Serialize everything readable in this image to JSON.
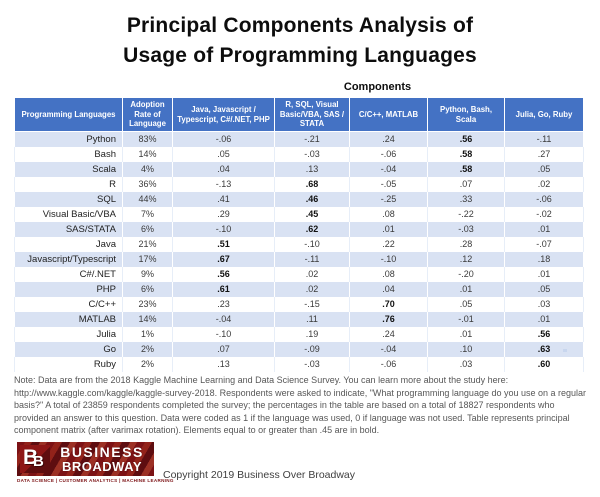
{
  "title": {
    "line1": "Principal Components Analysis of",
    "line2": "Usage of Programming Languages"
  },
  "table": {
    "components_label": "Components",
    "columns": [
      "Programming Languages",
      "Adoption Rate of Language",
      "Java, Javascript / Typescript, C#/.NET, PHP",
      "R, SQL, Visual Basic/VBA, SAS / STATA",
      "C/C++, MATLAB",
      "Python, Bash, Scala",
      "Julia, Go, Ruby"
    ],
    "rows": [
      {
        "language": "Python",
        "adoption": "83%",
        "values": [
          "-.06",
          "-.21",
          ".24",
          ".56",
          "-.11"
        ],
        "bold_index": 3
      },
      {
        "language": "Bash",
        "adoption": "14%",
        "values": [
          ".05",
          "-.03",
          "-.06",
          ".58",
          ".27"
        ],
        "bold_index": 3
      },
      {
        "language": "Scala",
        "adoption": "4%",
        "values": [
          ".04",
          ".13",
          "-.04",
          ".58",
          ".05"
        ],
        "bold_index": 3
      },
      {
        "language": "R",
        "adoption": "36%",
        "values": [
          "-.13",
          ".68",
          "-.05",
          ".07",
          ".02"
        ],
        "bold_index": 1
      },
      {
        "language": "SQL",
        "adoption": "44%",
        "values": [
          ".41",
          ".46",
          "-.25",
          ".33",
          "-.06"
        ],
        "bold_index": 1
      },
      {
        "language": "Visual Basic/VBA",
        "adoption": "7%",
        "values": [
          ".29",
          ".45",
          ".08",
          "-.22",
          "-.02"
        ],
        "bold_index": 1
      },
      {
        "language": "SAS/STATA",
        "adoption": "6%",
        "values": [
          "-.10",
          ".62",
          ".01",
          "-.03",
          ".01"
        ],
        "bold_index": 1
      },
      {
        "language": "Java",
        "adoption": "21%",
        "values": [
          ".51",
          "-.10",
          ".22",
          ".28",
          "-.07"
        ],
        "bold_index": 0
      },
      {
        "language": "Javascript/Typescript",
        "adoption": "17%",
        "values": [
          ".67",
          "-.11",
          "-.10",
          ".12",
          ".18"
        ],
        "bold_index": 0
      },
      {
        "language": "C#/.NET",
        "adoption": "9%",
        "values": [
          ".56",
          ".02",
          ".08",
          "-.20",
          ".01"
        ],
        "bold_index": 0
      },
      {
        "language": "PHP",
        "adoption": "6%",
        "values": [
          ".61",
          ".02",
          ".04",
          ".01",
          ".05"
        ],
        "bold_index": 0
      },
      {
        "language": "C/C++",
        "adoption": "23%",
        "values": [
          ".23",
          "-.15",
          ".70",
          ".05",
          ".03"
        ],
        "bold_index": 2
      },
      {
        "language": "MATLAB",
        "adoption": "14%",
        "values": [
          "-.04",
          ".11",
          ".76",
          "-.01",
          ".01"
        ],
        "bold_index": 2
      },
      {
        "language": "Julia",
        "adoption": "1%",
        "values": [
          "-.10",
          ".19",
          ".24",
          ".01",
          ".56"
        ],
        "bold_index": 4
      },
      {
        "language": "Go",
        "adoption": "2%",
        "values": [
          ".07",
          "-.09",
          "-.04",
          ".10",
          ".63"
        ],
        "bold_index": 4
      },
      {
        "language": "Ruby",
        "adoption": "2%",
        "values": [
          ".13",
          "-.03",
          "-.06",
          ".03",
          ".60"
        ],
        "bold_index": 4
      }
    ]
  },
  "note": "Note: Data are from the 2018 Kaggle Machine Learning and Data Science Survey. You can learn more about the study here: http://www.kaggle.com/kaggle/kaggle-survey-2018. Respondents were asked to indicate, \"What programming language do you use on a regular basis?\" A total of 23859 respondents completed the survey; the percentages in the table are based on a total of 18827 respondents who provided an answer to this question. Data were coded as 1 if the language was used, 0 if language was not used. Table represents principal component matrix (after varimax rotation). Elements equal to or greater than .45 are in bold.",
  "logo": {
    "b1": "B",
    "b2": "B",
    "line1": "BUSINESS",
    "line2": "BROADWAY",
    "tagline": "DATA SCIENCE  |  CUSTOMER ANALYTICS  |  MACHINE LEARNING"
  },
  "copyright": "Copyright 2019 Business Over Broadway",
  "colors": {
    "header_bg": "#4472C4",
    "band_bg": "#D9E2F3",
    "logo_red": "#7C1215"
  },
  "chart_data": {
    "type": "table",
    "title": "Principal Components Analysis of Usage of Programming Languages",
    "column_group_label": "Components",
    "columns": [
      "Programming Languages",
      "Adoption Rate of Language",
      "Java, Javascript / Typescript, C#/.NET, PHP",
      "R, SQL, Visual Basic/VBA, SAS / STATA",
      "C/C++, MATLAB",
      "Python, Bash, Scala",
      "Julia, Go, Ruby"
    ],
    "languages": [
      "Python",
      "Bash",
      "Scala",
      "R",
      "SQL",
      "Visual Basic/VBA",
      "SAS/STATA",
      "Java",
      "Javascript/Typescript",
      "C#/.NET",
      "PHP",
      "C/C++",
      "MATLAB",
      "Julia",
      "Go",
      "Ruby"
    ],
    "adoption_rate_pct": [
      83,
      14,
      4,
      36,
      44,
      7,
      6,
      21,
      17,
      9,
      6,
      23,
      14,
      1,
      2,
      2
    ],
    "loadings": [
      [
        -0.06,
        -0.21,
        0.24,
        0.56,
        -0.11
      ],
      [
        0.05,
        -0.03,
        -0.06,
        0.58,
        0.27
      ],
      [
        0.04,
        0.13,
        -0.04,
        0.58,
        0.05
      ],
      [
        -0.13,
        0.68,
        -0.05,
        0.07,
        0.02
      ],
      [
        0.41,
        0.46,
        -0.25,
        0.33,
        -0.06
      ],
      [
        0.29,
        0.45,
        0.08,
        -0.22,
        -0.02
      ],
      [
        -0.1,
        0.62,
        0.01,
        -0.03,
        0.01
      ],
      [
        0.51,
        -0.1,
        0.22,
        0.28,
        -0.07
      ],
      [
        0.67,
        -0.11,
        -0.1,
        0.12,
        0.18
      ],
      [
        0.56,
        0.02,
        0.08,
        -0.2,
        0.01
      ],
      [
        0.61,
        0.02,
        0.04,
        0.01,
        0.05
      ],
      [
        0.23,
        -0.15,
        0.7,
        0.05,
        0.03
      ],
      [
        -0.04,
        0.11,
        0.76,
        -0.01,
        0.01
      ],
      [
        -0.1,
        0.19,
        0.24,
        0.01,
        0.56
      ],
      [
        0.07,
        -0.09,
        -0.04,
        0.1,
        0.63
      ],
      [
        0.13,
        -0.03,
        -0.06,
        0.03,
        0.6
      ]
    ],
    "bold_threshold": 0.45
  }
}
